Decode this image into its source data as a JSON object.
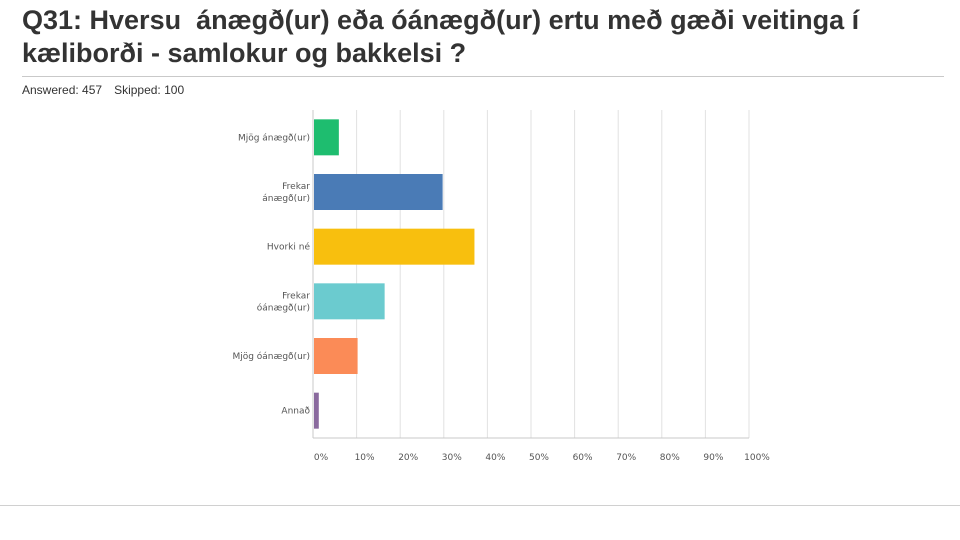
{
  "header": {
    "title": "Q31: Hversu  ánægð(ur) eða óánægð(ur) ertu með gæði veitinga í kæliborði - samlokur og bakkelsi ?",
    "answered": "Answered: 457",
    "skipped": "Skipped: 100"
  },
  "chart_data": {
    "type": "bar",
    "orientation": "horizontal",
    "categories": [
      [
        "Mjög ánægð(ur)"
      ],
      [
        "Frekar",
        "ánægð(ur)"
      ],
      [
        "Hvorki né"
      ],
      [
        "Frekar",
        "óánægð(ur)"
      ],
      [
        "Mjög óánægð(ur)"
      ],
      [
        "Annað"
      ]
    ],
    "values": [
      5.7,
      29.5,
      36.8,
      16.2,
      10.0,
      1.1
    ],
    "colors": [
      "#1ebd6f",
      "#4a7bb6",
      "#f8bf0e",
      "#6bcbcf",
      "#fb8b57",
      "#8a6a9e"
    ],
    "xlim": [
      0,
      100
    ],
    "x_ticks": [
      "0%",
      "10%",
      "20%",
      "30%",
      "40%",
      "50%",
      "60%",
      "70%",
      "80%",
      "90%",
      "100%"
    ],
    "grid": true,
    "legend": "none"
  }
}
